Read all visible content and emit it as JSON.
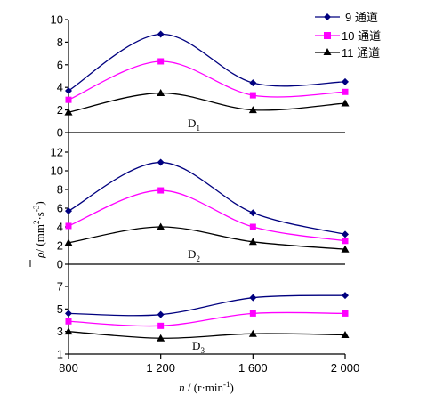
{
  "colors": {
    "s9": "#00007f",
    "s10": "#ff00ff",
    "s11": "#000000"
  },
  "legend": {
    "items": [
      {
        "label": "9 通道",
        "marker": "diamond"
      },
      {
        "label": "10 通道",
        "marker": "square"
      },
      {
        "label": "11 通道",
        "marker": "triangle"
      }
    ]
  },
  "axes": {
    "xlabel_var": "n",
    "xlabel_unit": "(r·min",
    "xlabel_exp": "-1",
    "xlabel_close": ")",
    "ylabel_var": "ρ",
    "ylabel_pre": "/ (mm",
    "ylabel_exp1": "2",
    "ylabel_mid": "·s",
    "ylabel_exp2": "-3",
    "ylabel_close": ")",
    "xticks": [
      "800",
      "1 200",
      "1 600",
      "2 000"
    ]
  },
  "chart_data": [
    {
      "type": "line",
      "panel_label": "D",
      "panel_sub": "1",
      "x": [
        800,
        1200,
        1600,
        2000
      ],
      "ylim": [
        0,
        10
      ],
      "yticks": [
        "0",
        "2",
        "4",
        "6",
        "8",
        "10"
      ],
      "series": [
        {
          "name": "9 通道",
          "values": [
            3.7,
            8.7,
            4.4,
            4.5
          ]
        },
        {
          "name": "10 通道",
          "values": [
            2.9,
            6.3,
            3.3,
            3.6
          ]
        },
        {
          "name": "11 通道",
          "values": [
            1.8,
            3.5,
            2.0,
            2.6
          ]
        }
      ]
    },
    {
      "type": "line",
      "panel_label": "D",
      "panel_sub": "2",
      "x": [
        800,
        1200,
        1600,
        2000
      ],
      "ylim": [
        0,
        12
      ],
      "yticks": [
        "0",
        "2",
        "4",
        "6",
        "8",
        "10",
        "12"
      ],
      "series": [
        {
          "name": "9 通道",
          "values": [
            5.7,
            10.9,
            5.5,
            3.2
          ]
        },
        {
          "name": "10 通道",
          "values": [
            4.1,
            7.9,
            4.0,
            2.5
          ]
        },
        {
          "name": "11 通道",
          "values": [
            2.3,
            4.0,
            2.4,
            1.6
          ]
        }
      ]
    },
    {
      "type": "line",
      "panel_label": "D",
      "panel_sub": "3",
      "x": [
        800,
        1200,
        1600,
        2000
      ],
      "ylim": [
        1,
        7
      ],
      "yticks": [
        "1",
        "3",
        "5",
        "7"
      ],
      "series": [
        {
          "name": "9 通道",
          "values": [
            4.6,
            4.5,
            6.0,
            6.2
          ]
        },
        {
          "name": "10 通道",
          "values": [
            3.9,
            3.5,
            4.6,
            4.6
          ]
        },
        {
          "name": "11 通道",
          "values": [
            3.0,
            2.4,
            2.8,
            2.7
          ]
        }
      ]
    }
  ]
}
